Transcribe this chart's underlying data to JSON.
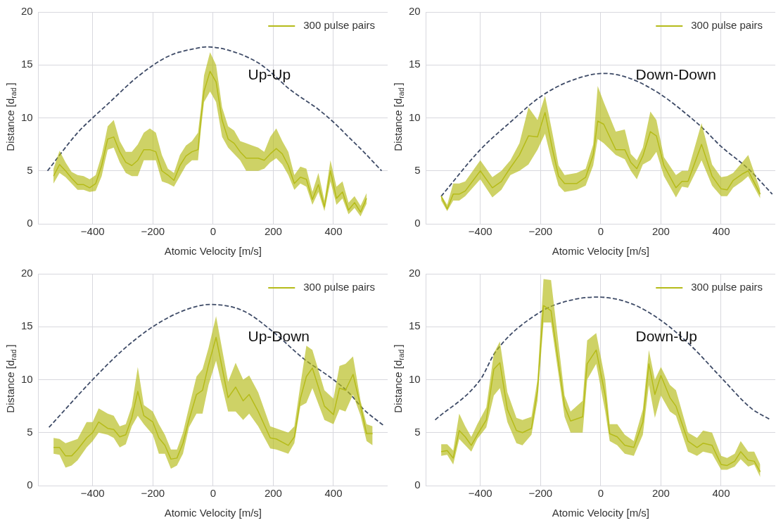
{
  "chart_data": [
    {
      "type": "line",
      "xlabel": "Atomic Velocity [m/s]",
      "ylabel": "Distance [d$_{rad}$]",
      "annotations": [
        "Up-Up"
      ],
      "xlim": [
        -580,
        580
      ],
      "ylim": [
        0,
        20
      ],
      "xticks": [
        -400,
        -200,
        0,
        200,
        400
      ],
      "yticks": [
        0,
        5,
        10,
        15,
        20
      ],
      "grid": true,
      "legend": "top right",
      "marker": "none",
      "series": [
        {
          "name": "300 pulse pairs",
          "color": "#b5bb1a",
          "line_style": "solid",
          "x": [
            -530,
            -510,
            -490,
            -470,
            -450,
            -430,
            -410,
            -390,
            -370,
            -360,
            -350,
            -330,
            -310,
            -290,
            -270,
            -250,
            -230,
            -210,
            -190,
            -170,
            -150,
            -130,
            -110,
            -90,
            -70,
            -50,
            -40,
            -30,
            -10,
            10,
            30,
            50,
            70,
            90,
            110,
            130,
            150,
            170,
            190,
            210,
            230,
            250,
            270,
            290,
            310,
            330,
            350,
            370,
            390,
            410,
            430,
            450,
            470,
            490,
            510
          ],
          "values": [
            4.5,
            5.6,
            5.0,
            4.3,
            3.7,
            3.7,
            3.4,
            3.8,
            5.5,
            6.8,
            8.0,
            8.2,
            6.8,
            5.8,
            5.5,
            6.0,
            7.0,
            7.0,
            6.8,
            5.0,
            4.6,
            4.1,
            5.5,
            6.4,
            6.8,
            7.0,
            10.0,
            12.5,
            14.4,
            13.4,
            9.8,
            8.0,
            7.6,
            6.8,
            6.2,
            6.2,
            6.2,
            6.0,
            6.6,
            7.1,
            6.6,
            5.5,
            3.8,
            4.4,
            4.2,
            2.3,
            3.7,
            1.6,
            5.0,
            2.4,
            3.0,
            1.3,
            2.0,
            1.1,
            2.4
          ],
          "lower": [
            3.8,
            4.8,
            4.4,
            3.8,
            3.2,
            3.2,
            3.0,
            3.1,
            4.5,
            5.8,
            7.0,
            7.2,
            5.8,
            4.8,
            4.5,
            4.5,
            6.0,
            6.0,
            6.0,
            4.0,
            3.8,
            3.5,
            4.5,
            5.5,
            6.0,
            6.0,
            9.0,
            11.5,
            12.5,
            11.5,
            8.2,
            7.2,
            6.6,
            6.0,
            5.0,
            5.0,
            5.0,
            5.2,
            5.8,
            6.2,
            5.6,
            4.6,
            3.2,
            3.8,
            3.5,
            1.8,
            3.0,
            1.2,
            4.0,
            1.8,
            2.4,
            0.9,
            1.5,
            0.7,
            1.9
          ],
          "upper": [
            5.2,
            6.9,
            5.8,
            4.9,
            4.6,
            4.5,
            4.2,
            4.6,
            6.5,
            7.8,
            9.2,
            9.8,
            7.8,
            6.8,
            6.8,
            7.5,
            8.6,
            9.0,
            8.6,
            6.5,
            5.2,
            4.8,
            6.5,
            7.4,
            7.8,
            8.6,
            11.0,
            14.0,
            16.2,
            15.0,
            11.0,
            9.2,
            8.8,
            7.8,
            7.6,
            7.4,
            7.2,
            6.8,
            8.2,
            9.0,
            7.8,
            6.8,
            4.6,
            5.4,
            5.2,
            3.0,
            4.8,
            2.2,
            6.0,
            3.5,
            4.0,
            2.0,
            2.6,
            1.7,
            2.9
          ]
        },
        {
          "color": "#3d4a66",
          "line_style": "dashed",
          "x": [
            -550,
            -450,
            -400,
            -350,
            -250,
            -150,
            -50,
            -20,
            50,
            150,
            200,
            250,
            350,
            400,
            450,
            500,
            560
          ],
          "values": [
            5.0,
            8.6,
            10.0,
            11.3,
            13.9,
            15.8,
            16.6,
            16.7,
            16.4,
            15.2,
            14.1,
            12.8,
            10.8,
            9.6,
            8.2,
            6.8,
            5.0
          ]
        }
      ]
    },
    {
      "type": "line",
      "xlabel": "Atomic Velocity [m/s]",
      "ylabel": "Distance [d$_{rad}$]",
      "annotations": [
        "Down-Down"
      ],
      "xlim": [
        -580,
        580
      ],
      "ylim": [
        0,
        20
      ],
      "xticks": [
        -400,
        -200,
        0,
        200,
        400
      ],
      "yticks": [
        0,
        5,
        10,
        15,
        20
      ],
      "grid": true,
      "legend": "top right",
      "marker": "none",
      "series": [
        {
          "name": "300 pulse pairs",
          "color": "#b5bb1a",
          "line_style": "solid",
          "x": [
            -530,
            -510,
            -490,
            -470,
            -450,
            -400,
            -360,
            -330,
            -300,
            -270,
            -240,
            -210,
            -185,
            -160,
            -140,
            -120,
            -80,
            -50,
            -25,
            -10,
            10,
            50,
            80,
            100,
            120,
            140,
            165,
            185,
            210,
            250,
            270,
            290,
            335,
            370,
            400,
            420,
            440,
            470,
            490,
            530
          ],
          "values": [
            2.6,
            1.4,
            2.8,
            2.8,
            3.1,
            5.0,
            3.4,
            4.0,
            5.3,
            6.5,
            8.3,
            8.2,
            10.5,
            7.0,
            4.5,
            3.8,
            3.8,
            4.4,
            6.5,
            9.7,
            9.4,
            7.0,
            7.0,
            5.8,
            5.2,
            6.4,
            8.7,
            8.3,
            5.5,
            3.4,
            4.0,
            4.0,
            7.5,
            4.5,
            3.3,
            3.2,
            4.1,
            4.7,
            5.0,
            2.8
          ],
          "lower": [
            2.2,
            1.2,
            2.2,
            2.2,
            2.6,
            4.2,
            2.5,
            3.2,
            4.6,
            5.0,
            5.6,
            7.0,
            8.5,
            5.6,
            3.6,
            3.0,
            3.2,
            3.6,
            5.5,
            8.0,
            7.6,
            6.5,
            6.1,
            5.0,
            4.2,
            5.6,
            6.0,
            6.8,
            4.5,
            2.5,
            3.5,
            3.4,
            6.0,
            3.6,
            2.6,
            2.6,
            3.4,
            4.0,
            4.5,
            2.4
          ],
          "upper": [
            2.7,
            1.8,
            3.8,
            3.8,
            4.0,
            6.0,
            4.4,
            5.0,
            6.0,
            7.6,
            11.0,
            9.8,
            12.1,
            8.5,
            5.5,
            4.6,
            4.8,
            5.2,
            7.5,
            13.0,
            11.5,
            8.7,
            8.9,
            6.6,
            6.0,
            7.2,
            10.6,
            9.8,
            6.3,
            4.6,
            5.0,
            5.0,
            9.5,
            5.6,
            4.4,
            4.5,
            4.8,
            5.8,
            6.5,
            3.2
          ]
        },
        {
          "color": "#3d4a66",
          "line_style": "dashed",
          "x": [
            -530,
            -400,
            -300,
            -200,
            -100,
            10,
            100,
            200,
            300,
            340,
            400,
            490,
            570
          ],
          "values": [
            2.6,
            7.0,
            9.6,
            12.0,
            13.5,
            14.2,
            13.7,
            12.2,
            10.0,
            9.0,
            7.3,
            5.2,
            2.8
          ]
        }
      ]
    },
    {
      "type": "line",
      "xlabel": "Atomic Velocity [m/s]",
      "ylabel": "Distance [d$_{rad}$]",
      "annotations": [
        "Up-Down"
      ],
      "xlim": [
        -580,
        580
      ],
      "ylim": [
        0,
        20
      ],
      "xticks": [
        -400,
        -200,
        0,
        200,
        400
      ],
      "yticks": [
        0,
        5,
        10,
        15,
        20
      ],
      "grid": true,
      "legend": "top right",
      "marker": "none",
      "series": [
        {
          "name": "300 pulse pairs",
          "color": "#b5bb1a",
          "line_style": "solid",
          "x": [
            -530,
            -510,
            -490,
            -470,
            -450,
            -420,
            -400,
            -380,
            -350,
            -330,
            -310,
            -290,
            -270,
            -250,
            -230,
            -200,
            -180,
            -160,
            -140,
            -120,
            -100,
            -80,
            -55,
            -35,
            -15,
            10,
            50,
            75,
            100,
            120,
            150,
            190,
            210,
            250,
            270,
            290,
            310,
            330,
            370,
            400,
            420,
            440,
            465,
            490,
            510,
            530
          ],
          "values": [
            3.6,
            3.6,
            2.8,
            2.8,
            3.4,
            4.5,
            5.0,
            6.0,
            5.4,
            5.3,
            4.6,
            4.8,
            6.4,
            8.9,
            6.6,
            6.0,
            4.5,
            3.8,
            2.5,
            2.6,
            4.0,
            6.2,
            8.6,
            9.0,
            11.4,
            14.0,
            8.3,
            9.3,
            8.0,
            8.6,
            7.0,
            4.5,
            4.4,
            3.8,
            4.6,
            8.2,
            10.3,
            11.1,
            7.5,
            6.7,
            9.2,
            9.0,
            10.5,
            7.5,
            4.9,
            4.9
          ],
          "lower": [
            3.0,
            2.9,
            1.7,
            1.9,
            2.4,
            3.6,
            4.2,
            5.0,
            4.8,
            4.5,
            3.6,
            3.9,
            5.6,
            6.6,
            5.8,
            4.8,
            3.0,
            3.0,
            1.6,
            1.9,
            3.0,
            5.5,
            6.8,
            6.8,
            9.5,
            11.8,
            7.0,
            7.0,
            6.2,
            6.8,
            5.6,
            3.5,
            3.4,
            3.0,
            4.0,
            7.5,
            7.8,
            9.2,
            6.2,
            5.8,
            7.2,
            7.0,
            8.6,
            6.6,
            4.2,
            3.8
          ],
          "upper": [
            4.5,
            4.4,
            4.0,
            4.2,
            4.4,
            6.0,
            6.0,
            7.3,
            6.8,
            6.6,
            5.6,
            5.8,
            7.5,
            11.2,
            7.6,
            7.0,
            5.8,
            4.8,
            3.4,
            3.4,
            5.0,
            7.4,
            10.3,
            11.0,
            13.0,
            16.0,
            9.8,
            11.6,
            10.0,
            10.4,
            8.8,
            5.6,
            5.4,
            5.0,
            5.6,
            9.5,
            13.2,
            12.8,
            9.0,
            8.2,
            11.3,
            11.5,
            12.2,
            8.0,
            5.8,
            5.6
          ]
        },
        {
          "color": "#3d4a66",
          "line_style": "dashed",
          "x": [
            -545,
            -400,
            -300,
            -200,
            -100,
            -10,
            100,
            200,
            300,
            400,
            450,
            500,
            570
          ],
          "values": [
            5.5,
            10.0,
            12.8,
            15.0,
            16.5,
            17.1,
            16.5,
            14.5,
            12.0,
            10.0,
            8.8,
            7.2,
            5.6
          ]
        }
      ]
    },
    {
      "type": "line",
      "xlabel": "Atomic Velocity [m/s]",
      "ylabel": "Distance [d$_{rad}$]",
      "annotations": [
        "Down-Up"
      ],
      "xlim": [
        -580,
        580
      ],
      "ylim": [
        0,
        20
      ],
      "xticks": [
        -400,
        -200,
        0,
        200,
        400
      ],
      "yticks": [
        0,
        5,
        10,
        15,
        20
      ],
      "grid": true,
      "legend": "top right",
      "marker": "none",
      "series": [
        {
          "name": "300 pulse pairs",
          "color": "#b5bb1a",
          "line_style": "solid",
          "x": [
            -530,
            -510,
            -490,
            -470,
            -450,
            -430,
            -410,
            -380,
            -355,
            -335,
            -310,
            -280,
            -260,
            -230,
            -210,
            -190,
            -165,
            -120,
            -100,
            -60,
            -45,
            -15,
            15,
            30,
            55,
            80,
            110,
            140,
            160,
            180,
            200,
            230,
            250,
            290,
            320,
            340,
            370,
            400,
            420,
            445,
            465,
            490,
            510,
            530
          ],
          "values": [
            3.2,
            3.3,
            2.6,
            5.2,
            4.6,
            3.8,
            4.8,
            6.2,
            11.0,
            11.6,
            7.2,
            5.2,
            5.0,
            5.4,
            9.0,
            17.0,
            16.5,
            7.5,
            6.1,
            6.5,
            11.5,
            12.8,
            8.5,
            4.9,
            4.6,
            3.8,
            3.6,
            6.0,
            11.5,
            8.6,
            10.4,
            8.3,
            7.5,
            4.2,
            3.6,
            4.0,
            3.8,
            2.0,
            1.9,
            2.3,
            3.2,
            2.4,
            2.3,
            1.3
          ],
          "lower": [
            2.8,
            2.9,
            2.0,
            4.4,
            3.8,
            3.2,
            4.4,
            5.5,
            8.5,
            9.2,
            6.0,
            4.0,
            3.8,
            4.8,
            8.0,
            15.4,
            15.4,
            6.5,
            5.0,
            5.0,
            10.0,
            11.5,
            7.0,
            4.2,
            3.8,
            3.0,
            2.8,
            4.8,
            9.5,
            6.4,
            8.5,
            7.0,
            6.6,
            3.2,
            2.8,
            3.2,
            3.0,
            1.5,
            1.5,
            1.8,
            2.5,
            1.8,
            2.0,
            0.8
          ],
          "upper": [
            3.9,
            3.9,
            3.3,
            6.8,
            5.6,
            4.6,
            5.8,
            7.4,
            12.5,
            13.6,
            8.8,
            6.4,
            6.2,
            6.5,
            10.0,
            19.5,
            19.4,
            8.5,
            7.0,
            8.0,
            13.7,
            14.4,
            10.0,
            5.8,
            5.8,
            4.8,
            4.2,
            7.2,
            12.8,
            10.0,
            11.2,
            9.5,
            9.0,
            5.0,
            4.5,
            5.2,
            5.0,
            2.8,
            2.6,
            3.0,
            4.2,
            3.2,
            3.2,
            2.0
          ]
        },
        {
          "color": "#3d4a66",
          "line_style": "dashed",
          "x": [
            -550,
            -400,
            -350,
            -200,
            -100,
            -10,
            100,
            200,
            300,
            400,
            500,
            565
          ],
          "values": [
            6.2,
            10.0,
            12.6,
            16.4,
            17.5,
            17.8,
            17.2,
            15.6,
            13.2,
            10.2,
            7.3,
            6.2
          ]
        }
      ]
    }
  ]
}
